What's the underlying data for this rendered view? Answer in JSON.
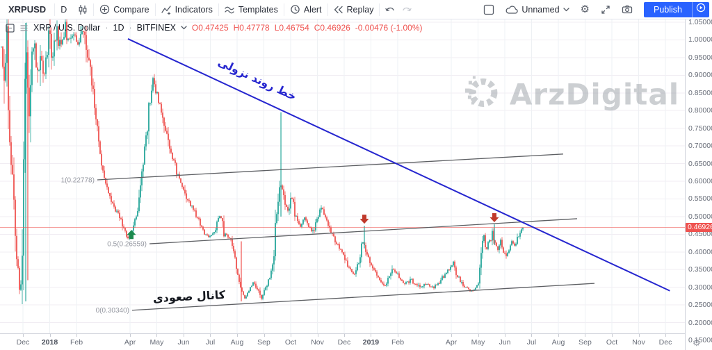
{
  "toolbar": {
    "symbol": "XRPUSD",
    "interval": "D",
    "compare": "Compare",
    "indicators": "Indicators",
    "templates": "Templates",
    "alert": "Alert",
    "replay": "Replay",
    "layout_name": "Unnamed",
    "publish": "Publish"
  },
  "legend": {
    "title": "XRP / U.S. Dollar",
    "separator": "·",
    "interval": "1D",
    "exchange": "BITFINEX",
    "o": "O0.47425",
    "h": "H0.47778",
    "l": "L0.46754",
    "c": "C0.46926",
    "change": "-0.00476 (-1.00%)"
  },
  "watermark": {
    "text": "ArzDigital"
  },
  "annotations": {
    "trendline_label": "خط روند نزولی",
    "channel_label": "کانال صعودی"
  },
  "price_axis": {
    "last_price_label": "0.46926",
    "ticks": [
      {
        "label": "1.05000",
        "p": 1.05
      },
      {
        "label": "1.00000",
        "p": 1.0
      },
      {
        "label": "0.95000",
        "p": 0.95
      },
      {
        "label": "0.90000",
        "p": 0.9
      },
      {
        "label": "0.85000",
        "p": 0.85
      },
      {
        "label": "0.80000",
        "p": 0.8
      },
      {
        "label": "0.75000",
        "p": 0.75
      },
      {
        "label": "0.70000",
        "p": 0.7
      },
      {
        "label": "0.65000",
        "p": 0.65
      },
      {
        "label": "0.60000",
        "p": 0.6
      },
      {
        "label": "0.55000",
        "p": 0.55
      },
      {
        "label": "0.50000",
        "p": 0.5
      },
      {
        "label": "0.45000",
        "p": 0.45
      },
      {
        "label": "0.40000",
        "p": 0.4
      },
      {
        "label": "0.35000",
        "p": 0.35
      },
      {
        "label": "0.30000",
        "p": 0.3
      },
      {
        "label": "0.25000",
        "p": 0.25
      },
      {
        "label": "0.20000",
        "p": 0.2
      },
      {
        "label": "0.15000",
        "p": 0.15
      }
    ]
  },
  "time_axis": {
    "ticks": [
      {
        "label": "Dec",
        "t": 0.0335
      },
      {
        "label": "2018",
        "t": 0.0726,
        "bold": true
      },
      {
        "label": "Feb",
        "t": 0.1117
      },
      {
        "label": "Apr",
        "t": 0.1899
      },
      {
        "label": "May",
        "t": 0.2289
      },
      {
        "label": "Jun",
        "t": 0.268
      },
      {
        "label": "Jul",
        "t": 0.3071
      },
      {
        "label": "Aug",
        "t": 0.3462
      },
      {
        "label": "Sep",
        "t": 0.3853
      },
      {
        "label": "Oct",
        "t": 0.4244
      },
      {
        "label": "Nov",
        "t": 0.4635
      },
      {
        "label": "Dec",
        "t": 0.5025
      },
      {
        "label": "2019",
        "t": 0.5416,
        "bold": true
      },
      {
        "label": "Feb",
        "t": 0.5807
      },
      {
        "label": "Apr",
        "t": 0.6589
      },
      {
        "label": "May",
        "t": 0.698
      },
      {
        "label": "Jun",
        "t": 0.7371
      },
      {
        "label": "Jul",
        "t": 0.7761
      },
      {
        "label": "Aug",
        "t": 0.8152
      },
      {
        "label": "Sep",
        "t": 0.8543
      },
      {
        "label": "Oct",
        "t": 0.8934
      },
      {
        "label": "Nov",
        "t": 0.9325
      },
      {
        "label": "Dec",
        "t": 0.9716
      }
    ]
  },
  "chart_data": {
    "type": "candlestick",
    "symbol": "XRP/USD",
    "interval": "1D",
    "exchange": "BITFINEX",
    "x_range": [
      "Dec 2017",
      "Dec 2019"
    ],
    "ylim": [
      0.15,
      1.05
    ],
    "ohlc": {
      "open": 0.47425,
      "high": 0.47778,
      "low": 0.46754,
      "close": 0.46926,
      "change": -0.00476,
      "change_pct": -1.0
    },
    "current_price": 0.46926,
    "data_end_t": 0.7635,
    "price_keypoints": [
      [
        0.002,
        0.98
      ],
      [
        0.006,
        0.8
      ],
      [
        0.01,
        1.02
      ],
      [
        0.014,
        0.75
      ],
      [
        0.018,
        0.6
      ],
      [
        0.024,
        0.4
      ],
      [
        0.03,
        0.28
      ],
      [
        0.0345,
        0.6
      ],
      [
        0.0386,
        1.0
      ],
      [
        0.0426,
        0.8
      ],
      [
        0.0467,
        0.95
      ],
      [
        0.0508,
        1.02
      ],
      [
        0.0548,
        0.88
      ],
      [
        0.0589,
        0.96
      ],
      [
        0.065,
        0.9
      ],
      [
        0.0711,
        1.0
      ],
      [
        0.0772,
        0.96
      ],
      [
        0.0832,
        1.02
      ],
      [
        0.0893,
        0.98
      ],
      [
        0.0954,
        1.03
      ],
      [
        0.1015,
        0.99
      ],
      [
        0.1076,
        1.02
      ],
      [
        0.1137,
        0.99
      ],
      [
        0.1198,
        1.03
      ],
      [
        0.1259,
        0.98
      ],
      [
        0.132,
        0.9
      ],
      [
        0.1381,
        0.82
      ],
      [
        0.1442,
        0.72
      ],
      [
        0.1503,
        0.63
      ],
      [
        0.1563,
        0.58
      ],
      [
        0.1624,
        0.55
      ],
      [
        0.1685,
        0.52
      ],
      [
        0.1746,
        0.5
      ],
      [
        0.1807,
        0.47
      ],
      [
        0.1868,
        0.44
      ],
      [
        0.1929,
        0.46
      ],
      [
        0.199,
        0.5
      ],
      [
        0.2051,
        0.58
      ],
      [
        0.2112,
        0.68
      ],
      [
        0.2173,
        0.8
      ],
      [
        0.2234,
        0.88
      ],
      [
        0.2294,
        0.85
      ],
      [
        0.2355,
        0.8
      ],
      [
        0.2416,
        0.74
      ],
      [
        0.2477,
        0.7
      ],
      [
        0.2558,
        0.64
      ],
      [
        0.264,
        0.6
      ],
      [
        0.2721,
        0.55
      ],
      [
        0.2802,
        0.53
      ],
      [
        0.2883,
        0.5
      ],
      [
        0.2964,
        0.46
      ],
      [
        0.3046,
        0.44
      ],
      [
        0.3127,
        0.46
      ],
      [
        0.3208,
        0.5
      ],
      [
        0.3269,
        0.46
      ],
      [
        0.333,
        0.44
      ],
      [
        0.3391,
        0.42
      ],
      [
        0.3452,
        0.36
      ],
      [
        0.3513,
        0.3
      ],
      [
        0.3574,
        0.27
      ],
      [
        0.3635,
        0.29
      ],
      [
        0.3695,
        0.31
      ],
      [
        0.3756,
        0.29
      ],
      [
        0.3817,
        0.27
      ],
      [
        0.3878,
        0.3
      ],
      [
        0.3939,
        0.33
      ],
      [
        0.4,
        0.4
      ],
      [
        0.4061,
        0.55
      ],
      [
        0.4102,
        0.6
      ],
      [
        0.4142,
        0.55
      ],
      [
        0.4203,
        0.52
      ],
      [
        0.4264,
        0.55
      ],
      [
        0.4325,
        0.5
      ],
      [
        0.4386,
        0.47
      ],
      [
        0.4447,
        0.5
      ],
      [
        0.4508,
        0.47
      ],
      [
        0.4569,
        0.46
      ],
      [
        0.4629,
        0.49
      ],
      [
        0.469,
        0.53
      ],
      [
        0.4751,
        0.5
      ],
      [
        0.4812,
        0.46
      ],
      [
        0.4873,
        0.44
      ],
      [
        0.4934,
        0.42
      ],
      [
        0.4995,
        0.4
      ],
      [
        0.5056,
        0.37
      ],
      [
        0.5117,
        0.35
      ],
      [
        0.5178,
        0.34
      ],
      [
        0.5239,
        0.37
      ],
      [
        0.5299,
        0.43
      ],
      [
        0.536,
        0.39
      ],
      [
        0.5421,
        0.36
      ],
      [
        0.5482,
        0.34
      ],
      [
        0.5543,
        0.32
      ],
      [
        0.5604,
        0.3
      ],
      [
        0.5665,
        0.32
      ],
      [
        0.5726,
        0.36
      ],
      [
        0.5787,
        0.34
      ],
      [
        0.5848,
        0.32
      ],
      [
        0.5909,
        0.31
      ],
      [
        0.599,
        0.32
      ],
      [
        0.6071,
        0.31
      ],
      [
        0.6152,
        0.3
      ],
      [
        0.6234,
        0.31
      ],
      [
        0.6315,
        0.3
      ],
      [
        0.6396,
        0.31
      ],
      [
        0.6477,
        0.33
      ],
      [
        0.6558,
        0.35
      ],
      [
        0.6619,
        0.37
      ],
      [
        0.668,
        0.33
      ],
      [
        0.6741,
        0.31
      ],
      [
        0.6802,
        0.3
      ],
      [
        0.6863,
        0.29
      ],
      [
        0.6924,
        0.29
      ],
      [
        0.6985,
        0.31
      ],
      [
        0.7025,
        0.4
      ],
      [
        0.7066,
        0.44
      ],
      [
        0.7107,
        0.41
      ],
      [
        0.7147,
        0.43
      ],
      [
        0.7188,
        0.45
      ],
      [
        0.7228,
        0.43
      ],
      [
        0.7269,
        0.41
      ],
      [
        0.731,
        0.43
      ],
      [
        0.735,
        0.4
      ],
      [
        0.7391,
        0.38
      ],
      [
        0.7432,
        0.41
      ],
      [
        0.7472,
        0.43
      ],
      [
        0.7513,
        0.42
      ],
      [
        0.7553,
        0.44
      ],
      [
        0.7594,
        0.45
      ],
      [
        0.7635,
        0.469
      ]
    ],
    "spikes": [
      {
        "t": 0.0376,
        "p1": 0.26,
        "p2": 1.048,
        "dir": "up"
      },
      {
        "t": 0.0406,
        "p1": 0.32,
        "p2": 0.98,
        "dir": "down"
      },
      {
        "t": 0.4102,
        "p1": 0.5,
        "p2": 0.795,
        "dir": "up"
      },
      {
        "t": 0.3523,
        "p1": 0.26,
        "p2": 0.43,
        "dir": "down"
      },
      {
        "t": 0.532,
        "p1": 0.41,
        "p2": 0.474,
        "dir": "up"
      },
      {
        "t": 0.7218,
        "p1": 0.42,
        "p2": 0.478,
        "dir": "up"
      }
    ],
    "markers": [
      {
        "type": "arrow-up",
        "t": 0.1919,
        "p": 0.462,
        "color": "#1c8a4e"
      },
      {
        "type": "arrow-down",
        "t": 0.532,
        "p": 0.48,
        "color": "#c0392b"
      },
      {
        "type": "arrow-down",
        "t": 0.7218,
        "p": 0.484,
        "color": "#c0392b"
      }
    ],
    "trendline": {
      "name": "descending-trendline",
      "t1": 0.1868,
      "p1": 1.003,
      "t2": 0.978,
      "p2": 0.29
    },
    "fib_lines": [
      {
        "label": "1(0.22778)",
        "t1": 0.1421,
        "p1": 0.604,
        "t2": 0.8223,
        "p2": 0.677
      },
      {
        "label": "0.5(0.26559)",
        "t1": 0.2183,
        "p1": 0.423,
        "t2": 0.8426,
        "p2": 0.494
      },
      {
        "label": "0(0.30340)",
        "t1": 0.1929,
        "p1": 0.235,
        "t2": 0.868,
        "p2": 0.311
      }
    ]
  },
  "colors": {
    "up": "#26a69a",
    "down": "#ef5350",
    "accent": "#2962ff",
    "trend": "#2626cf",
    "fib": "#5d5f63",
    "fib_label": "#9598a1",
    "grid_h": "#f1edf3",
    "grid_v": "#eef1f4",
    "last_price_bg": "#ef5350"
  }
}
